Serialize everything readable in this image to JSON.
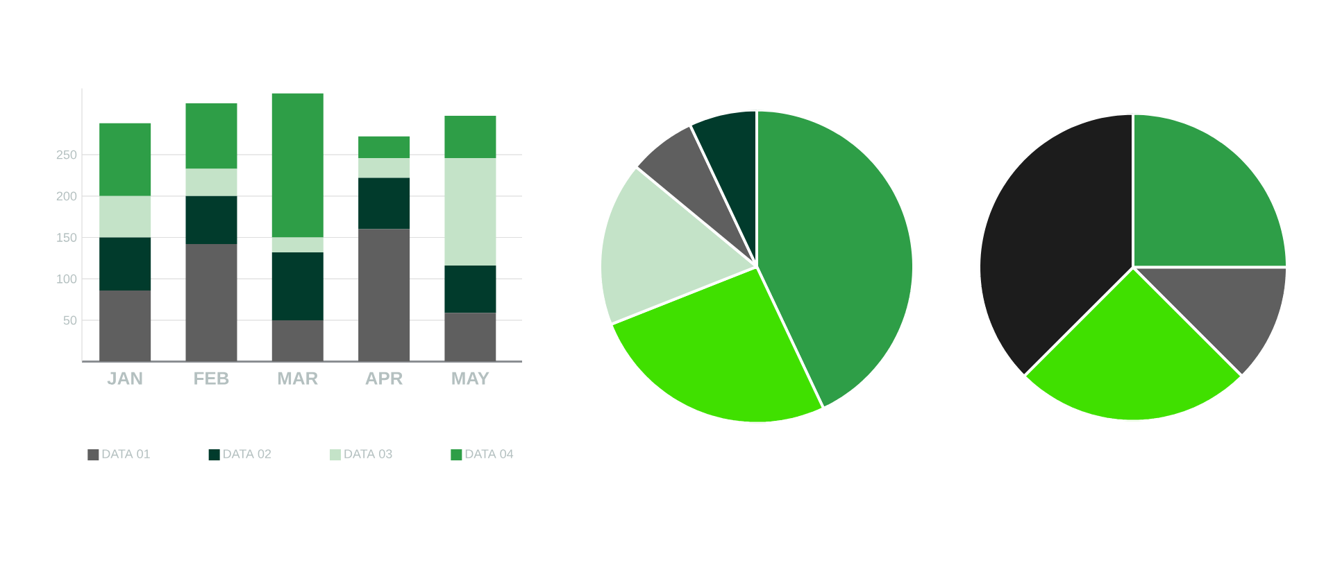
{
  "chart_data": [
    {
      "type": "bar",
      "stacked": true,
      "categories": [
        "JAN",
        "FEB",
        "MAR",
        "APR",
        "MAY"
      ],
      "series": [
        {
          "name": "DATA 01",
          "color": "#5f5f5f",
          "values": [
            86,
            142,
            50,
            160,
            59
          ]
        },
        {
          "name": "DATA 02",
          "color": "#013b2c",
          "values": [
            64,
            58,
            82,
            62,
            57
          ]
        },
        {
          "name": "DATA 03",
          "color": "#c4e3c8",
          "values": [
            50,
            33,
            18,
            24,
            130
          ]
        },
        {
          "name": "DATA 04",
          "color": "#2e9e47",
          "values": [
            88,
            79,
            174,
            26,
            51
          ]
        }
      ],
      "ylim": [
        0,
        330
      ],
      "yticks": [
        50,
        100,
        150,
        200,
        250
      ],
      "grid": "y",
      "legend": "bottom"
    },
    {
      "type": "pie",
      "categories": [
        null,
        null,
        null,
        null,
        null
      ],
      "values": [
        43,
        26,
        17,
        7,
        7
      ],
      "colors": [
        "#2e9e47",
        "#40e000",
        "#c4e3c8",
        "#5f5f5f",
        "#013b2c"
      ]
    },
    {
      "type": "pie",
      "categories": [
        null,
        null,
        null,
        null
      ],
      "values": [
        25,
        12.5,
        25,
        37.5
      ],
      "colors": [
        "#2e9e47",
        "#5f5f5f",
        "#40e000",
        "#1c1c1c"
      ]
    }
  ]
}
